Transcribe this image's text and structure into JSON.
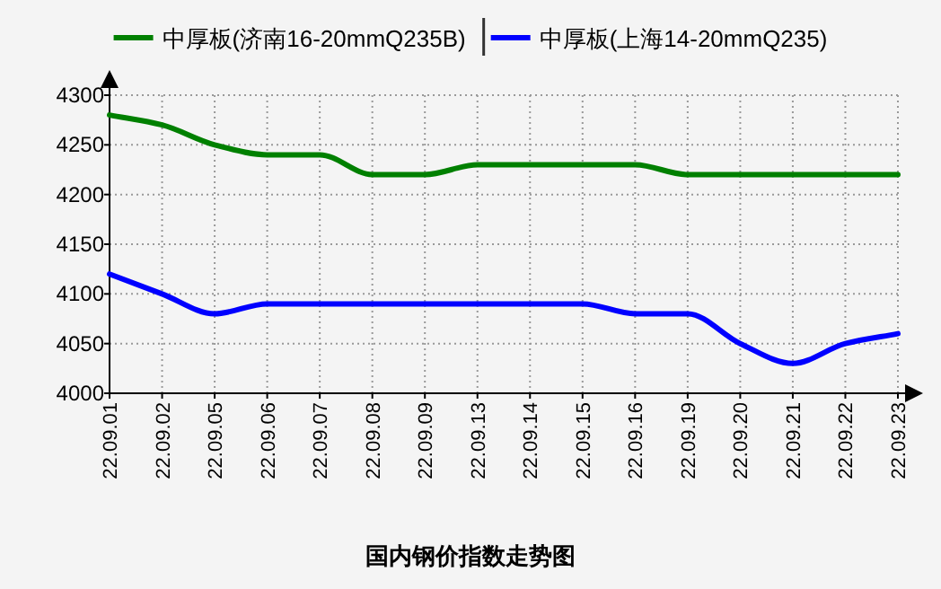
{
  "chart_data": {
    "type": "line",
    "title": "国内钢价指数走势图",
    "categories": [
      "22.09.01",
      "22.09.02",
      "22.09.05",
      "22.09.06",
      "22.09.07",
      "22.09.08",
      "22.09.09",
      "22.09.13",
      "22.09.14",
      "22.09.15",
      "22.09.16",
      "22.09.19",
      "22.09.20",
      "22.09.21",
      "22.09.22",
      "22.09.23"
    ],
    "series": [
      {
        "name": "中厚板(济南16-20mmQ235B)",
        "color": "#008000",
        "values": [
          4280,
          4270,
          4250,
          4240,
          4240,
          4220,
          4220,
          4230,
          4230,
          4230,
          4230,
          4220,
          4220,
          4220,
          4220,
          4220
        ]
      },
      {
        "name": "中厚板(上海14-20mmQ235)",
        "color": "#0000ff",
        "values": [
          4120,
          4100,
          4080,
          4090,
          4090,
          4090,
          4090,
          4090,
          4090,
          4090,
          4080,
          4080,
          4050,
          4030,
          4050,
          4060
        ]
      }
    ],
    "ylim": [
      4000,
      4300
    ],
    "yticks": [
      4000,
      4050,
      4100,
      4150,
      4200,
      4250,
      4300
    ],
    "grid": true,
    "legend": "top",
    "line_style": "solid"
  }
}
